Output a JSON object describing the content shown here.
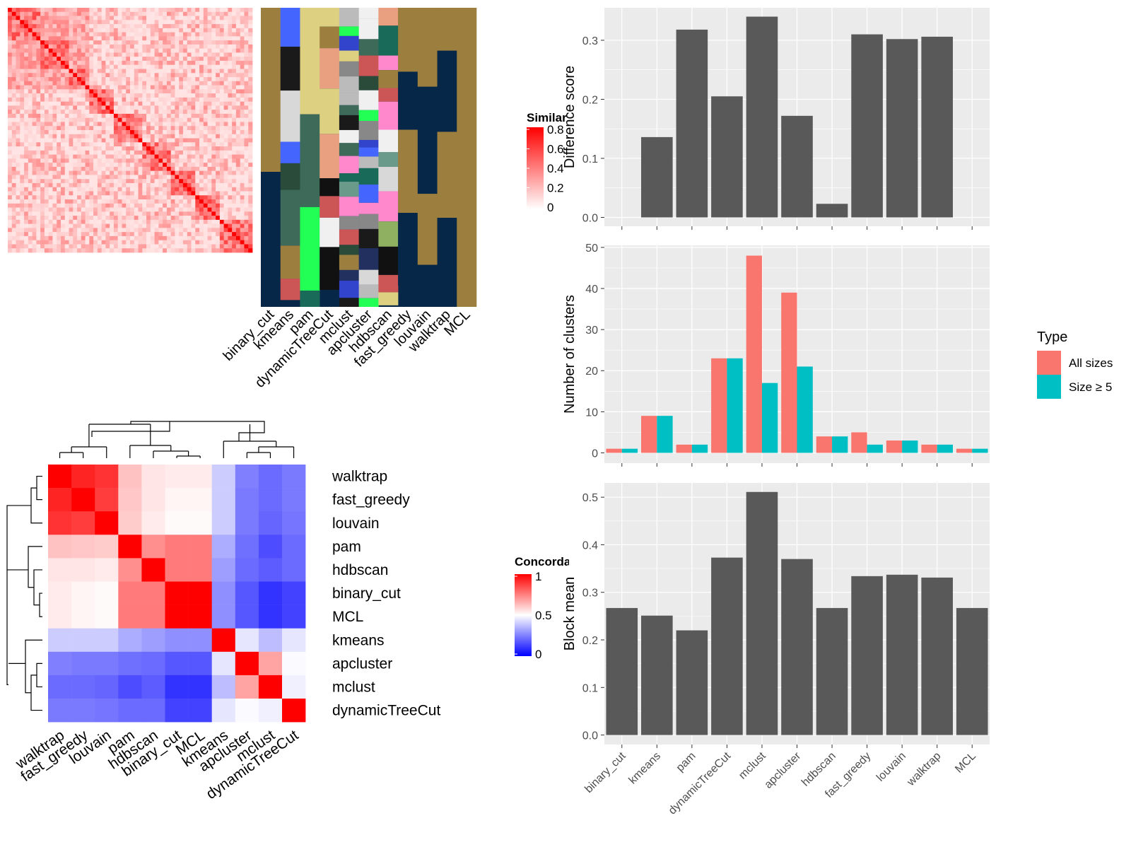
{
  "similarity_legend": {
    "title": "Similarity",
    "ticks": [
      "0.8",
      "0.6",
      "0.4",
      "0.2",
      "0"
    ],
    "tick_values": [
      0.8,
      0.6,
      0.4,
      0.2,
      0
    ]
  },
  "concordance_legend": {
    "title": "Concordance",
    "ticks": [
      "1",
      "0.5",
      "0"
    ],
    "tick_values": [
      1,
      0.5,
      0
    ]
  },
  "colors": {
    "red": "#ff0000",
    "blue": "#0000ff",
    "white": "#ffffff",
    "panel_bg": "#ebebeb",
    "bar_gray": "#595959",
    "all_sizes": "#f8766d",
    "size5": "#00bfc4",
    "strip_bg": "#072749",
    "strip_gold": "#9c7f3e"
  },
  "chart_data": [
    {
      "type": "heatmap",
      "name": "similarity-heatmap",
      "columns": [
        "binary_cut",
        "kmeans",
        "pam",
        "dynamicTreeCut",
        "mclust",
        "apcluster",
        "hdbscan",
        "fast_greedy",
        "louvain",
        "walktrap",
        "MCL"
      ],
      "legend_title": "Similarity",
      "value_range": [
        0,
        0.8
      ]
    },
    {
      "type": "heatmap",
      "name": "concordance-heatmap",
      "rows": [
        "walktrap",
        "fast_greedy",
        "louvain",
        "pam",
        "hdbscan",
        "binary_cut",
        "MCL",
        "kmeans",
        "apcluster",
        "mclust",
        "dynamicTreeCut"
      ],
      "columns": [
        "walktrap",
        "fast_greedy",
        "louvain",
        "pam",
        "hdbscan",
        "binary_cut",
        "MCL",
        "kmeans",
        "apcluster",
        "mclust",
        "dynamicTreeCut"
      ],
      "values": [
        [
          1.0,
          0.93,
          0.9,
          0.62,
          0.55,
          0.54,
          0.54,
          0.4,
          0.25,
          0.21,
          0.24
        ],
        [
          0.93,
          1.0,
          0.88,
          0.61,
          0.55,
          0.52,
          0.52,
          0.4,
          0.24,
          0.21,
          0.24
        ],
        [
          0.9,
          0.88,
          1.0,
          0.6,
          0.54,
          0.51,
          0.51,
          0.4,
          0.24,
          0.2,
          0.23
        ],
        [
          0.62,
          0.61,
          0.6,
          1.0,
          0.72,
          0.76,
          0.76,
          0.34,
          0.22,
          0.15,
          0.21
        ],
        [
          0.55,
          0.55,
          0.54,
          0.72,
          1.0,
          0.76,
          0.76,
          0.31,
          0.21,
          0.18,
          0.21
        ],
        [
          0.54,
          0.52,
          0.51,
          0.76,
          0.76,
          1.0,
          1.0,
          0.28,
          0.17,
          0.1,
          0.13
        ],
        [
          0.54,
          0.52,
          0.51,
          0.76,
          0.76,
          1.0,
          1.0,
          0.28,
          0.17,
          0.1,
          0.13
        ],
        [
          0.4,
          0.4,
          0.4,
          0.34,
          0.31,
          0.28,
          0.28,
          1.0,
          0.45,
          0.37,
          0.45
        ],
        [
          0.25,
          0.24,
          0.24,
          0.22,
          0.21,
          0.17,
          0.17,
          0.45,
          1.0,
          0.68,
          0.49
        ],
        [
          0.21,
          0.21,
          0.2,
          0.15,
          0.18,
          0.1,
          0.1,
          0.37,
          0.68,
          1.0,
          0.47
        ],
        [
          0.24,
          0.24,
          0.23,
          0.21,
          0.21,
          0.13,
          0.13,
          0.45,
          0.49,
          0.47,
          1.0
        ]
      ],
      "legend_title": "Concordance",
      "value_range": [
        0,
        1
      ]
    },
    {
      "type": "bar",
      "name": "difference-score",
      "categories": [
        "binary_cut",
        "kmeans",
        "pam",
        "dynamicTreeCut",
        "mclust",
        "apcluster",
        "hdbscan",
        "fast_greedy",
        "louvain",
        "walktrap",
        "MCL"
      ],
      "values": [
        0.0,
        0.136,
        0.318,
        0.205,
        0.34,
        0.172,
        0.023,
        0.31,
        0.302,
        0.306,
        0.0
      ],
      "ylabel": "Difference score",
      "ylim": [
        -0.015,
        0.355
      ],
      "yticks": [
        0.0,
        0.1,
        0.2,
        0.3
      ],
      "ytick_labels": [
        "0.0",
        "0.1",
        "0.2",
        "0.3"
      ],
      "grid": true
    },
    {
      "type": "bar",
      "name": "number-of-clusters",
      "categories": [
        "binary_cut",
        "kmeans",
        "pam",
        "dynamicTreeCut",
        "mclust",
        "apcluster",
        "hdbscan",
        "fast_greedy",
        "louvain",
        "walktrap",
        "MCL"
      ],
      "series": [
        {
          "name": "All sizes",
          "values": [
            1,
            9,
            2,
            23,
            48,
            39,
            4,
            5,
            3,
            2,
            1
          ]
        },
        {
          "name": "Size ≥ 5",
          "values": [
            1,
            9,
            2,
            23,
            17,
            21,
            4,
            2,
            3,
            2,
            1
          ]
        }
      ],
      "ylabel": "Number of clusters",
      "ylim": [
        -2.5,
        50.5
      ],
      "yticks": [
        0,
        10,
        20,
        30,
        40,
        50
      ],
      "ytick_labels": [
        "0",
        "10",
        "20",
        "30",
        "40",
        "50"
      ],
      "legend": {
        "title": "Type",
        "position": "right"
      },
      "grid": true
    },
    {
      "type": "bar",
      "name": "block-mean",
      "categories": [
        "binary_cut",
        "kmeans",
        "pam",
        "dynamicTreeCut",
        "mclust",
        "apcluster",
        "hdbscan",
        "fast_greedy",
        "louvain",
        "walktrap",
        "MCL"
      ],
      "values": [
        0.267,
        0.251,
        0.22,
        0.373,
        0.511,
        0.37,
        0.267,
        0.334,
        0.337,
        0.331,
        0.267
      ],
      "ylabel": "Block mean",
      "ylim": [
        -0.02,
        0.53
      ],
      "yticks": [
        0.0,
        0.1,
        0.2,
        0.3,
        0.4,
        0.5
      ],
      "ytick_labels": [
        "0.0",
        "0.1",
        "0.2",
        "0.3",
        "0.4",
        "0.5"
      ],
      "grid": true
    }
  ]
}
